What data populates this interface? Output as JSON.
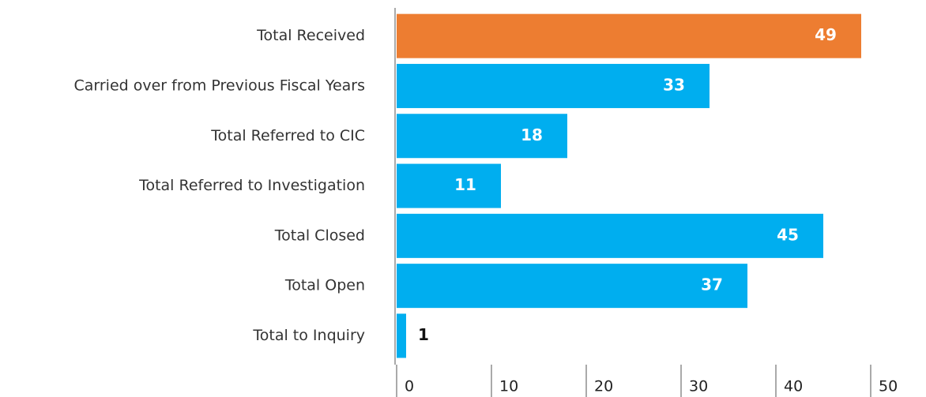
{
  "chart_data": {
    "type": "barh",
    "categories": [
      "Total Received",
      "Carried over from Previous Fiscal Years",
      "Total Referred to CIC",
      "Total Referred to Investigation",
      "Total Closed",
      "Total Open",
      "Total to Inquiry"
    ],
    "values": [
      49,
      33,
      18,
      11,
      45,
      37,
      1
    ],
    "colors": [
      "#ed7d31",
      "#00aeef",
      "#00aeef",
      "#00aeef",
      "#00aeef",
      "#00aeef",
      "#00aeef"
    ],
    "xlim": [
      0,
      50
    ],
    "xticks": [
      0,
      10,
      20,
      30,
      40,
      50
    ]
  }
}
